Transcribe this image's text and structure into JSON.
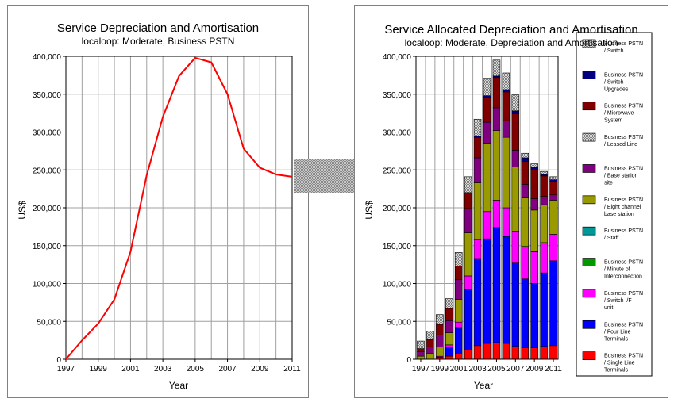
{
  "colors": {
    "line": "#ff0000",
    "grid": "#a0a0a0",
    "arrow": "#a8a8a8",
    "panel_border": "#808080"
  },
  "arrow_icon": "arrow-right-icon",
  "chart_data": [
    {
      "type": "line",
      "title": "Service Depreciation and Amortisation",
      "subtitle": "localoop: Moderate, Business PSTN",
      "xlabel": "Year",
      "ylabel": "US$",
      "xlim": [
        1997,
        2011
      ],
      "ylim": [
        0,
        400000
      ],
      "grid": true,
      "x_tick_labels": [
        "1997",
        "1999",
        "2001",
        "2003",
        "2005",
        "2007",
        "2009",
        "2011"
      ],
      "y_tick_labels": [
        "0",
        "50,000",
        "100,000",
        "150,000",
        "200,000",
        "250,000",
        "300,000",
        "350,000",
        "400,000"
      ],
      "series": [
        {
          "color": "#ff0000",
          "x": [
            1997,
            1998,
            1999,
            2000,
            2001,
            2002,
            2003,
            2004,
            2005,
            2006,
            2007,
            2008,
            2009,
            2010,
            2011
          ],
          "y": [
            0,
            25000,
            47000,
            79000,
            142000,
            243000,
            320000,
            374000,
            398000,
            392000,
            350000,
            278000,
            253000,
            244000,
            241000
          ]
        }
      ]
    },
    {
      "type": "bar",
      "stacked": true,
      "title": "Service Allocated Depreciation and Amortisation",
      "subtitle": "localoop: Moderate, Depreciation and Amortisation",
      "xlabel": "Year",
      "ylabel": "US$",
      "ylim": [
        0,
        400000
      ],
      "grid": true,
      "legend_position": "right",
      "categories": [
        "1997",
        "1998",
        "1999",
        "2000",
        "2001",
        "2002",
        "2003",
        "2004",
        "2005",
        "2006",
        "2007",
        "2008",
        "2009",
        "2010",
        "2011"
      ],
      "x_tick_labels": [
        "1997",
        "1999",
        "2001",
        "2003",
        "2005",
        "2007",
        "2009",
        "2011"
      ],
      "y_tick_labels": [
        "0",
        "50,000",
        "100,000",
        "150,000",
        "200,000",
        "250,000",
        "300,000",
        "350,000",
        "400,000"
      ],
      "series": [
        {
          "name": "Business PSTN / Single Line Terminals",
          "color": "#ff0000",
          "pattern": "solid",
          "values": [
            0,
            0,
            2000,
            4000,
            7000,
            12000,
            18000,
            21000,
            22000,
            21000,
            17000,
            15000,
            15000,
            17000,
            18000
          ]
        },
        {
          "name": "Business PSTN / Four Line Terminals",
          "color": "#0000ff",
          "pattern": "solid",
          "values": [
            0,
            0,
            1000,
            12000,
            34000,
            80000,
            115000,
            138000,
            152000,
            141000,
            110000,
            91000,
            85000,
            97000,
            112000
          ]
        },
        {
          "name": "Business PSTN / Switch I/F unit",
          "color": "#ff00ff",
          "pattern": "solid",
          "values": [
            0,
            0,
            1000,
            3000,
            8000,
            18000,
            25000,
            36000,
            36000,
            38000,
            42000,
            43000,
            42000,
            40000,
            35000
          ]
        },
        {
          "name": "Business PSTN / Minute of Interconnection",
          "color": "#009900",
          "pattern": "solid",
          "values": [
            0,
            0,
            0,
            0,
            0,
            0,
            0,
            0,
            0,
            0,
            0,
            0,
            0,
            0,
            0
          ]
        },
        {
          "name": "Business PSTN / Staff",
          "color": "#009999",
          "pattern": "solid",
          "values": [
            0,
            0,
            0,
            0,
            0,
            0,
            0,
            0,
            0,
            0,
            0,
            0,
            0,
            0,
            0
          ]
        },
        {
          "name": "Business PSTN / Eight channel base station",
          "color": "#999900",
          "pattern": "solid",
          "values": [
            4000,
            8000,
            12000,
            16000,
            30000,
            57000,
            75000,
            90000,
            92000,
            93000,
            85000,
            64000,
            55000,
            50000,
            45000
          ]
        },
        {
          "name": "Business PSTN / Base station site",
          "color": "#800080",
          "pattern": "solid",
          "values": [
            6000,
            8000,
            16000,
            16000,
            26000,
            32000,
            33000,
            28000,
            30000,
            22000,
            22000,
            18000,
            15000,
            11000,
            7000
          ]
        },
        {
          "name": "Business PSTN / Leased Line",
          "color": "#c8c8c8",
          "pattern": "gray",
          "values": [
            0,
            0,
            0,
            0,
            0,
            0,
            0,
            0,
            0,
            0,
            0,
            0,
            0,
            0,
            0
          ]
        },
        {
          "name": "Business PSTN / Microwave System",
          "color": "#800000",
          "pattern": "solid",
          "values": [
            4000,
            10000,
            14000,
            16000,
            18000,
            21000,
            27000,
            33000,
            40000,
            38000,
            48000,
            30000,
            38000,
            27000,
            18000
          ]
        },
        {
          "name": "Business PSTN / Switch Upgrades",
          "color": "#000080",
          "pattern": "solid",
          "values": [
            0,
            0,
            0,
            0,
            0,
            0,
            2000,
            2000,
            2000,
            3000,
            4000,
            5000,
            3000,
            2000,
            2000
          ]
        },
        {
          "name": "Business PSTN / Switch",
          "color": "#d0d0d0",
          "pattern": "gray",
          "values": [
            10000,
            11000,
            13000,
            13000,
            18000,
            21000,
            22000,
            23000,
            21000,
            22000,
            21000,
            6000,
            5000,
            4000,
            4000
          ]
        }
      ]
    }
  ]
}
